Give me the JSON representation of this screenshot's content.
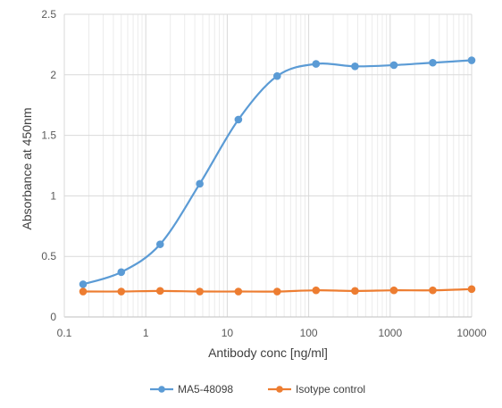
{
  "chart_data": {
    "type": "line",
    "x_scale": "log",
    "xlabel": "Antibody conc [ng/ml]",
    "ylabel": "Absorbance at 450nm",
    "xlim": [
      0.1,
      10000
    ],
    "ylim": [
      0,
      2.5
    ],
    "x_ticks": [
      "0.1",
      "1",
      "10",
      "100",
      "1000",
      "10000"
    ],
    "y_ticks": [
      "0",
      "0.5",
      "1",
      "1.5",
      "2",
      "2.5"
    ],
    "grid": {
      "major": true,
      "minor_x": true
    },
    "legend_position": "bottom",
    "x": [
      0.17,
      0.5,
      1.5,
      4.6,
      13.7,
      41,
      123,
      370,
      1111,
      3333,
      10000
    ],
    "series": [
      {
        "name": "MA5-48098",
        "color": "#5b9bd5",
        "values": [
          0.27,
          0.37,
          0.6,
          1.1,
          1.63,
          1.99,
          2.09,
          2.07,
          2.08,
          2.1,
          2.12
        ]
      },
      {
        "name": "Isotype control",
        "color": "#ed7d31",
        "values": [
          0.21,
          0.21,
          0.215,
          0.21,
          0.21,
          0.21,
          0.22,
          0.215,
          0.22,
          0.22,
          0.23
        ]
      }
    ]
  }
}
